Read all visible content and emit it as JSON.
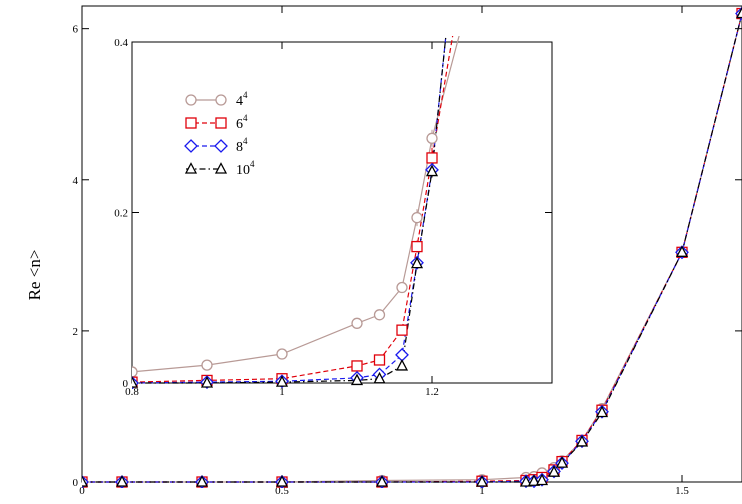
{
  "chart_data": [
    {
      "type": "line",
      "panel": "main",
      "ylabel": "Re <n>",
      "xlabel": "",
      "xlim": [
        0,
        1.65
      ],
      "ylim": [
        0,
        6.3
      ],
      "xticks": [
        0,
        0.5,
        1,
        1.5
      ],
      "xtick_labels": [
        "0",
        "0.5",
        "1",
        "1.5"
      ],
      "yticks": [
        0,
        2,
        4,
        6
      ],
      "ytick_labels": [
        "0",
        "2",
        "4",
        "6"
      ],
      "grid": false,
      "series": [
        {
          "name": "4^4",
          "color": "#b89a96",
          "marker": "circle",
          "dash": "solid",
          "x": [
            0,
            0.1,
            0.3,
            0.5,
            0.75,
            1.0,
            1.11,
            1.13,
            1.15,
            1.18,
            1.2,
            1.25,
            1.3,
            1.5,
            1.65
          ],
          "y": [
            0,
            0,
            0,
            0,
            0.02,
            0.03,
            0.06,
            0.07,
            0.12,
            0.19,
            0.28,
            0.55,
            0.97,
            3.04,
            6.2
          ]
        },
        {
          "name": "6^4",
          "color": "#e0000a",
          "marker": "square",
          "dash": "dashed",
          "x": [
            0,
            0.1,
            0.3,
            0.5,
            0.75,
            1.0,
            1.11,
            1.13,
            1.15,
            1.18,
            1.2,
            1.25,
            1.3,
            1.5,
            1.65
          ],
          "y": [
            0,
            0,
            0,
            0,
            0,
            0.01,
            0.02,
            0.03,
            0.06,
            0.16,
            0.27,
            0.55,
            0.95,
            3.04,
            6.2
          ]
        },
        {
          "name": "8^4",
          "color": "#1a1aee",
          "marker": "diamond",
          "dash": "dashed",
          "x": [
            0,
            0.1,
            0.3,
            0.5,
            0.75,
            1.0,
            1.11,
            1.13,
            1.15,
            1.18,
            1.2,
            1.25,
            1.3,
            1.5,
            1.65
          ],
          "y": [
            0,
            0,
            0,
            0,
            0,
            0,
            0.01,
            0.01,
            0.03,
            0.14,
            0.25,
            0.54,
            0.93,
            3.04,
            6.2
          ]
        },
        {
          "name": "10^4",
          "color": "#000000",
          "marker": "triangle",
          "dash": "dashdot",
          "x": [
            0,
            0.1,
            0.3,
            0.5,
            0.75,
            1.0,
            1.11,
            1.13,
            1.15,
            1.18,
            1.2,
            1.25,
            1.3,
            1.5,
            1.65
          ],
          "y": [
            0,
            0,
            0,
            0,
            0,
            0,
            0.0,
            0.01,
            0.02,
            0.13,
            0.25,
            0.53,
            0.92,
            3.04,
            6.2
          ]
        }
      ]
    },
    {
      "type": "line",
      "panel": "inset",
      "xlim": [
        0.8,
        1.36
      ],
      "ylim": [
        0,
        0.4
      ],
      "xticks": [
        0.8,
        1.0,
        1.2
      ],
      "xtick_labels": [
        "0.8",
        "1",
        "1.2"
      ],
      "yticks": [
        0,
        0.2,
        0.4
      ],
      "ytick_labels": [
        "0",
        "0.2",
        "0.4"
      ],
      "grid": false,
      "legend": {
        "placement": "top-left",
        "entries": [
          {
            "base": "4",
            "sup": "4",
            "color": "#b89a96",
            "marker": "circle",
            "dash": "solid"
          },
          {
            "base": "6",
            "sup": "4",
            "color": "#e0000a",
            "marker": "square",
            "dash": "dashed"
          },
          {
            "base": "8",
            "sup": "4",
            "color": "#1a1aee",
            "marker": "diamond",
            "dash": "dashed"
          },
          {
            "base": "10",
            "sup": "4",
            "color": "#000000",
            "marker": "triangle",
            "dash": "dashdot"
          }
        ]
      },
      "series": [
        {
          "name": "4^4",
          "color": "#b89a96",
          "marker": "circle",
          "dash": "solid",
          "x": [
            0.8,
            0.9,
            1.0,
            1.1,
            1.13,
            1.16,
            1.18,
            1.2,
            1.24
          ],
          "y": [
            0.013,
            0.021,
            0.034,
            0.07,
            0.08,
            0.112,
            0.194,
            0.287,
            0.42
          ],
          "err": [
            0,
            0.003,
            0.004,
            0.005,
            0.005,
            0.006,
            0.01,
            0.01,
            0
          ]
        },
        {
          "name": "6^4",
          "color": "#e0000a",
          "marker": "square",
          "dash": "dashed",
          "x": [
            0.8,
            0.9,
            1.0,
            1.1,
            1.13,
            1.16,
            1.18,
            1.2,
            1.23
          ],
          "y": [
            0.001,
            0.003,
            0.005,
            0.02,
            0.027,
            0.062,
            0.16,
            0.264,
            0.42
          ],
          "err": [
            0,
            0.002,
            0.002,
            0.003,
            0.003,
            0.004,
            0.007,
            0.012,
            0
          ]
        },
        {
          "name": "8^4",
          "color": "#1a1aee",
          "marker": "diamond",
          "dash": "dashed",
          "x": [
            0.8,
            0.9,
            1.0,
            1.1,
            1.13,
            1.16,
            1.18,
            1.2,
            1.22
          ],
          "y": [
            0.0,
            0.001,
            0.002,
            0.006,
            0.01,
            0.033,
            0.141,
            0.25,
            0.42
          ],
          "err": [
            0,
            0.001,
            0.001,
            0.002,
            0.002,
            0.003,
            0.004,
            0.008,
            0
          ]
        },
        {
          "name": "10^4",
          "color": "#000000",
          "marker": "triangle",
          "dash": "dashdot",
          "x": [
            0.8,
            0.9,
            1.0,
            1.1,
            1.13,
            1.16,
            1.18,
            1.2,
            1.22
          ],
          "y": [
            0.0,
            0.0,
            0.001,
            0.003,
            0.005,
            0.02,
            0.14,
            0.248,
            0.42
          ],
          "err": [
            0,
            0,
            0.001,
            0.001,
            0.002,
            0.003,
            0.004,
            0.007,
            0
          ]
        }
      ]
    }
  ]
}
